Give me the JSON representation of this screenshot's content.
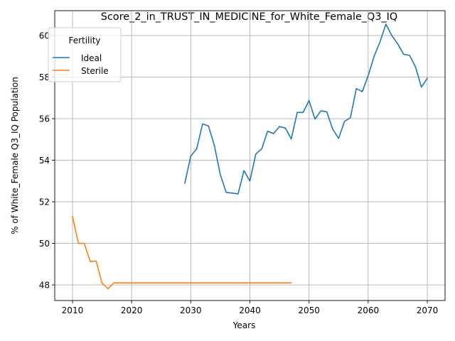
{
  "chart_data": {
    "type": "line",
    "title": "Score_2_in_TRUST_IN_MEDICINE_for_White_Female_Q3_IQ",
    "xlabel": "Years",
    "ylabel": "% of White_Female Q3_IQ Population",
    "xlim": [
      2007,
      2073
    ],
    "ylim": [
      47.25,
      61.2
    ],
    "x_ticks": [
      2010,
      2020,
      2030,
      2040,
      2050,
      2060,
      2070
    ],
    "y_ticks": [
      48,
      50,
      52,
      54,
      56,
      58,
      60
    ],
    "grid": true,
    "legend": {
      "title": "Fertility",
      "placement": "top-left"
    },
    "series": [
      {
        "name": "Ideal",
        "color": "#1f77b4",
        "x": [
          2029,
          2030,
          2031,
          2032,
          2033,
          2034,
          2035,
          2036,
          2037,
          2038,
          2039,
          2040,
          2041,
          2042,
          2043,
          2044,
          2045,
          2046,
          2047,
          2048,
          2049,
          2050,
          2051,
          2052,
          2053,
          2054,
          2055,
          2056,
          2057,
          2058,
          2059,
          2060,
          2061,
          2062,
          2063,
          2064,
          2065,
          2066,
          2067,
          2068,
          2069,
          2070
        ],
        "values": [
          52.9,
          54.2,
          54.55,
          55.75,
          55.65,
          54.7,
          53.3,
          52.45,
          52.42,
          52.38,
          53.5,
          53.0,
          54.3,
          54.55,
          55.4,
          55.28,
          55.62,
          55.55,
          55.03,
          56.3,
          56.3,
          56.88,
          55.98,
          56.38,
          56.33,
          55.5,
          55.05,
          55.87,
          56.05,
          57.45,
          57.3,
          58.07,
          59.0,
          59.7,
          60.55,
          60.0,
          59.6,
          59.1,
          59.05,
          58.5,
          57.52,
          57.95
        ]
      },
      {
        "name": "Sterile",
        "color": "#ff7f0e",
        "x": [
          2010,
          2011,
          2012,
          2013,
          2014,
          2015,
          2016,
          2017,
          2018,
          2019,
          2020,
          2021,
          2022,
          2023,
          2024,
          2025,
          2026,
          2027,
          2028,
          2029,
          2030,
          2031,
          2032,
          2033,
          2034,
          2035,
          2036,
          2037,
          2038,
          2039,
          2040,
          2041,
          2042,
          2043,
          2044,
          2045,
          2046,
          2047
        ],
        "values": [
          51.3,
          50.0,
          50.0,
          49.12,
          49.15,
          48.08,
          47.82,
          48.1,
          48.1,
          48.1,
          48.1,
          48.1,
          48.1,
          48.1,
          48.1,
          48.1,
          48.1,
          48.1,
          48.1,
          48.1,
          48.1,
          48.1,
          48.1,
          48.1,
          48.1,
          48.1,
          48.1,
          48.1,
          48.1,
          48.1,
          48.1,
          48.1,
          48.1,
          48.1,
          48.1,
          48.1,
          48.1,
          48.1
        ]
      }
    ]
  }
}
